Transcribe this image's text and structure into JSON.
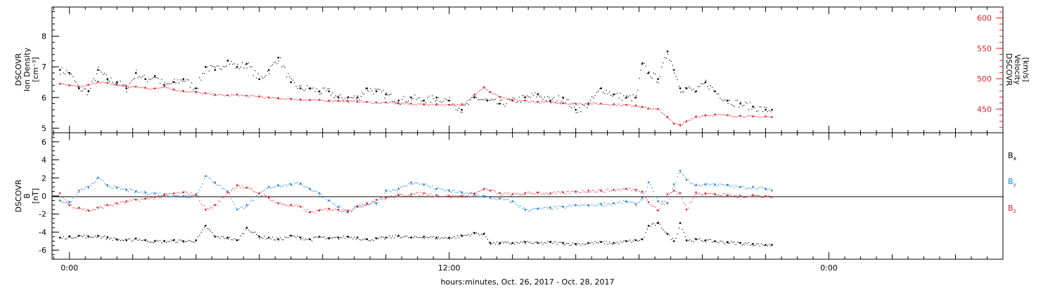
{
  "chart_data": [
    {
      "type": "scatter",
      "panel": "top",
      "ylabel": [
        "DSCOVR",
        "Ion Density",
        "[cm⁻³]"
      ],
      "ylim": [
        4.85,
        8.95
      ],
      "yticks": [
        "5",
        "6",
        "7",
        "8"
      ],
      "y2label": [
        "DSCOVR",
        "Velocity",
        "[km/s]"
      ],
      "y2lim": [
        411,
        618
      ],
      "y2ticks": [
        "450",
        "500",
        "550",
        "600"
      ],
      "colors": {
        "density": "#000000",
        "velocity": "#e0202a"
      },
      "series": [
        {
          "key": "density",
          "axis": "left",
          "x": [
            -0.3,
            0.0,
            0.3,
            0.6,
            0.9,
            1.2,
            1.5,
            1.8,
            2.1,
            2.4,
            2.7,
            3.0,
            3.3,
            3.6,
            4.0,
            4.3,
            4.6,
            5.0,
            5.3,
            5.6,
            6.0,
            6.3,
            6.6,
            7.0,
            7.3,
            7.6,
            7.9,
            8.2,
            8.5,
            8.8,
            9.1,
            9.4,
            9.7,
            10.0,
            10.4,
            10.8,
            11.2,
            11.6,
            12.0,
            12.4,
            12.8,
            13.2,
            13.6,
            14.0,
            14.4,
            14.8,
            15.2,
            15.6,
            16.0,
            16.4,
            16.8,
            17.2,
            17.6,
            17.9,
            18.1,
            18.3,
            18.6,
            18.9,
            19.1,
            19.3,
            19.5,
            19.8,
            20.1,
            20.4,
            20.8,
            21.2,
            21.6,
            22.0,
            22.2
          ],
          "y": [
            6.9,
            6.8,
            6.3,
            6.2,
            6.9,
            6.6,
            6.5,
            6.3,
            6.8,
            6.6,
            6.7,
            6.4,
            6.5,
            6.6,
            6.3,
            7.0,
            6.9,
            7.2,
            7.0,
            7.1,
            6.6,
            6.9,
            7.3,
            6.5,
            6.3,
            6.3,
            6.2,
            6.2,
            6.0,
            6.0,
            6.0,
            6.3,
            6.2,
            6.1,
            5.9,
            6.0,
            5.9,
            6.0,
            5.9,
            5.6,
            6.0,
            5.9,
            5.8,
            5.9,
            6.0,
            6.1,
            5.9,
            6.0,
            5.6,
            5.8,
            6.3,
            6.1,
            6.0,
            6.0,
            7.1,
            6.8,
            6.6,
            7.5,
            6.9,
            6.3,
            6.3,
            6.2,
            6.5,
            6.2,
            5.9,
            5.8,
            5.7,
            5.6,
            5.6
          ]
        },
        {
          "key": "velocity",
          "axis": "right",
          "x": [
            -0.3,
            0.0,
            0.3,
            0.6,
            0.9,
            1.2,
            1.5,
            1.8,
            2.1,
            2.4,
            2.7,
            3.0,
            3.3,
            3.6,
            4.0,
            4.3,
            4.6,
            5.0,
            5.3,
            5.6,
            6.0,
            6.3,
            6.6,
            7.0,
            7.3,
            7.6,
            7.9,
            8.2,
            8.5,
            8.8,
            9.1,
            9.4,
            9.7,
            10.0,
            10.4,
            10.8,
            11.2,
            11.6,
            12.0,
            12.4,
            12.8,
            13.1,
            13.3,
            13.6,
            14.0,
            14.4,
            14.8,
            15.2,
            15.6,
            16.0,
            16.4,
            16.8,
            17.2,
            17.6,
            17.9,
            18.1,
            18.3,
            18.6,
            18.9,
            19.1,
            19.3,
            19.5,
            19.8,
            20.1,
            20.4,
            20.8,
            21.2,
            21.6,
            22.0,
            22.2
          ],
          "y": [
            492,
            489,
            487,
            490,
            495,
            493,
            490,
            488,
            487,
            485,
            484,
            488,
            482,
            480,
            478,
            476,
            474,
            473,
            474,
            472,
            471,
            469,
            468,
            467,
            466,
            465,
            465,
            464,
            464,
            463,
            463,
            462,
            461,
            461,
            460,
            459,
            458,
            458,
            457,
            458,
            474,
            486,
            478,
            470,
            465,
            464,
            462,
            462,
            460,
            459,
            460,
            459,
            458,
            457,
            456,
            454,
            451,
            450,
            437,
            426,
            424,
            430,
            438,
            440,
            441,
            440,
            439,
            438,
            438,
            437
          ]
        }
      ]
    },
    {
      "type": "scatter",
      "panel": "bottom",
      "ylabel": [
        "DSCOVR",
        "B",
        "[nT]"
      ],
      "ylim": [
        -7,
        7
      ],
      "yticks": [
        "-6",
        "-4",
        "-2",
        "0",
        "2",
        "4",
        "6"
      ],
      "colors": {
        "Bx": "#000000",
        "By": "#1f7fd8",
        "Bz": "#e0202a"
      },
      "series": [
        {
          "key": "Bx",
          "x": [
            -0.3,
            0.0,
            0.3,
            0.6,
            0.9,
            1.2,
            1.5,
            1.8,
            2.1,
            2.4,
            2.7,
            3.0,
            3.3,
            3.6,
            4.0,
            4.3,
            4.6,
            5.0,
            5.3,
            5.6,
            6.0,
            6.3,
            6.6,
            7.0,
            7.3,
            7.6,
            7.9,
            8.2,
            8.5,
            8.8,
            9.1,
            9.4,
            9.7,
            10.0,
            10.4,
            10.8,
            11.2,
            11.6,
            12.0,
            12.4,
            12.8,
            13.1,
            13.3,
            13.6,
            14.0,
            14.4,
            14.8,
            15.2,
            15.6,
            16.0,
            16.4,
            16.8,
            17.2,
            17.6,
            17.9,
            18.1,
            18.3,
            18.6,
            18.9,
            19.1,
            19.3,
            19.5,
            19.8,
            20.1,
            20.4,
            20.8,
            21.2,
            21.6,
            22.0,
            22.2
          ],
          "y": [
            -4.6,
            -4.5,
            -4.4,
            -4.5,
            -4.4,
            -4.6,
            -4.8,
            -4.9,
            -4.7,
            -4.9,
            -5.0,
            -5.0,
            -4.9,
            -5.0,
            -4.9,
            -3.3,
            -4.5,
            -4.6,
            -4.9,
            -3.5,
            -4.5,
            -4.6,
            -4.8,
            -4.4,
            -4.6,
            -4.8,
            -4.5,
            -4.7,
            -4.6,
            -4.5,
            -4.6,
            -4.8,
            -4.7,
            -4.6,
            -4.4,
            -4.6,
            -4.5,
            -4.6,
            -4.6,
            -4.4,
            -4.1,
            -4.2,
            -5.2,
            -5.2,
            -5.2,
            -5.1,
            -5.2,
            -5.1,
            -5.2,
            -5.3,
            -5.2,
            -5.1,
            -5.2,
            -5.0,
            -4.9,
            -4.8,
            -3.3,
            -3.0,
            -4.2,
            -5.0,
            -3.0,
            -4.9,
            -4.8,
            -4.9,
            -5.0,
            -5.1,
            -5.2,
            -5.3,
            -5.4,
            -5.4
          ]
        },
        {
          "key": "By",
          "x": [
            -0.3,
            0.0,
            0.3,
            0.6,
            0.9,
            1.2,
            1.5,
            1.8,
            2.1,
            2.4,
            2.7,
            3.0,
            3.3,
            3.6,
            4.0,
            4.3,
            4.6,
            5.0,
            5.3,
            5.6,
            6.0,
            6.3,
            6.6,
            7.0,
            7.3,
            7.6,
            7.9,
            8.2,
            8.5,
            8.8,
            9.1,
            9.4,
            9.7,
            10.0,
            10.4,
            10.8,
            11.2,
            11.6,
            12.0,
            12.4,
            12.8,
            13.1,
            13.3,
            13.6,
            14.0,
            14.4,
            14.8,
            15.2,
            15.6,
            16.0,
            16.4,
            16.8,
            17.2,
            17.6,
            17.9,
            18.1,
            18.3,
            18.6,
            18.9,
            19.1,
            19.3,
            19.5,
            19.8,
            20.1,
            20.4,
            20.8,
            21.2,
            21.6,
            22.0,
            22.2
          ],
          "y": [
            -0.5,
            -0.7,
            0.6,
            1.0,
            2.0,
            1.2,
            0.9,
            0.7,
            0.5,
            0.4,
            0.3,
            0.2,
            0.0,
            0.0,
            0.1,
            2.2,
            1.5,
            0.5,
            -1.5,
            -1.0,
            0.3,
            1.0,
            1.2,
            1.3,
            1.4,
            0.8,
            0.3,
            -0.5,
            -1.2,
            -1.8,
            -1.1,
            -0.9,
            -0.8,
            0.6,
            0.8,
            1.5,
            1.3,
            0.8,
            0.6,
            0.4,
            0.2,
            0.0,
            -0.2,
            -0.3,
            -0.6,
            -1.5,
            -1.4,
            -1.3,
            -1.2,
            -1.0,
            -1.0,
            -0.9,
            -0.8,
            -0.6,
            -0.9,
            -0.2,
            1.5,
            -0.6,
            -0.8,
            1.3,
            2.8,
            1.8,
            1.2,
            1.3,
            1.3,
            1.2,
            1.0,
            1.0,
            0.8,
            0.6
          ]
        },
        {
          "key": "Bz",
          "x": [
            -0.3,
            0.0,
            0.3,
            0.6,
            0.9,
            1.2,
            1.5,
            1.8,
            2.1,
            2.4,
            2.7,
            3.0,
            3.3,
            3.6,
            4.0,
            4.3,
            4.6,
            5.0,
            5.3,
            5.6,
            6.0,
            6.3,
            6.6,
            7.0,
            7.3,
            7.6,
            7.9,
            8.2,
            8.5,
            8.8,
            9.1,
            9.4,
            9.7,
            10.0,
            10.4,
            10.8,
            11.2,
            11.6,
            12.0,
            12.4,
            12.8,
            13.1,
            13.3,
            13.6,
            14.0,
            14.4,
            14.8,
            15.2,
            15.6,
            16.0,
            16.4,
            16.8,
            17.2,
            17.6,
            17.9,
            18.1,
            18.3,
            18.6,
            18.9,
            19.1,
            19.3,
            19.5,
            19.8,
            20.1,
            20.4,
            20.8,
            21.2,
            21.6,
            22.0,
            22.2
          ],
          "y": [
            0.3,
            -1.0,
            -1.3,
            -1.6,
            -1.3,
            -1.0,
            -0.8,
            -0.6,
            -0.4,
            -0.3,
            -0.1,
            0.1,
            0.3,
            0.4,
            0.2,
            -1.5,
            -1.0,
            0.4,
            1.2,
            0.9,
            0.3,
            -0.2,
            -0.8,
            -1.0,
            -1.2,
            -1.8,
            -1.6,
            -1.4,
            -1.5,
            -1.6,
            -1.2,
            -0.8,
            -0.4,
            -0.2,
            0.1,
            0.2,
            0.3,
            0.1,
            0.0,
            0.0,
            0.3,
            0.8,
            0.6,
            0.3,
            0.2,
            0.3,
            0.4,
            0.3,
            0.4,
            0.5,
            0.6,
            0.6,
            0.7,
            0.8,
            0.7,
            0.5,
            -0.7,
            -1.6,
            0.2,
            0.6,
            0.3,
            -1.5,
            0.4,
            0.3,
            0.2,
            0.1,
            0.0,
            0.1,
            0.0,
            -0.1
          ]
        }
      ]
    }
  ],
  "xaxis": {
    "label": "hours:minutes, Oct. 26, 2017 - Oct. 28, 2017",
    "xlim": [
      -0.55,
      29.5
    ],
    "major_ticks": [
      {
        "x": 0,
        "label": "0:00"
      },
      {
        "x": 12,
        "label": "12:00"
      },
      {
        "x": 24,
        "label": "0:00"
      }
    ]
  },
  "legend": [
    {
      "key": "Bx",
      "base": "B",
      "sub": "x"
    },
    {
      "key": "By",
      "base": "B",
      "sub": "y"
    },
    {
      "key": "Bz",
      "base": "B",
      "sub": "z"
    }
  ]
}
